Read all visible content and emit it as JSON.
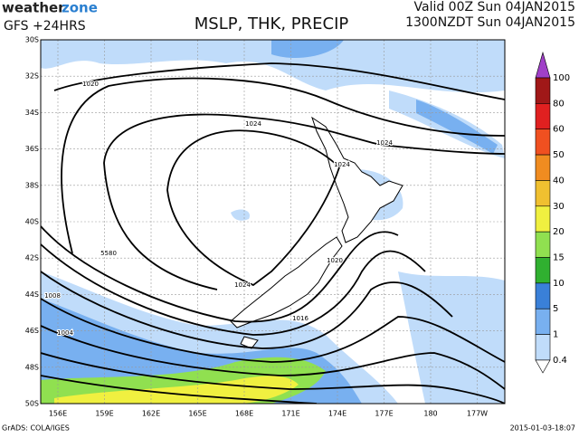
{
  "header": {
    "logo_a": "weather",
    "logo_b": "zone",
    "model": "GFS +24HRS",
    "title": "MSLP, THK, PRECIP",
    "valid": "Valid 00Z Sun 04JAN2015",
    "local": "1300NZDT Sun 04JAN2015"
  },
  "latitudes": [
    "30S",
    "32S",
    "34S",
    "36S",
    "38S",
    "40S",
    "42S",
    "44S",
    "46S",
    "48S",
    "50S"
  ],
  "longitudes": [
    "156E",
    "159E",
    "162E",
    "165E",
    "168E",
    "171E",
    "174E",
    "177E",
    "180",
    "177W"
  ],
  "isobar_labels": [
    "1020",
    "1024",
    "1024",
    "1024",
    "1020",
    "1016",
    "1024",
    "1008",
    "1004",
    "5580"
  ],
  "legend": {
    "labels": [
      "100",
      "80",
      "60",
      "50",
      "40",
      "30",
      "20",
      "15",
      "10",
      "5",
      "1",
      "0.4"
    ],
    "colors": [
      "#a040c8",
      "#a01818",
      "#e02020",
      "#f05020",
      "#f08c20",
      "#f0c030",
      "#f0f040",
      "#90e050",
      "#30b030",
      "#3a80d8",
      "#78b0f0",
      "#c0dcfa",
      "#ffffff"
    ]
  },
  "footer": {
    "credit": "GrADS: COLA/IGES",
    "time": "2015-01-03-18:07"
  }
}
